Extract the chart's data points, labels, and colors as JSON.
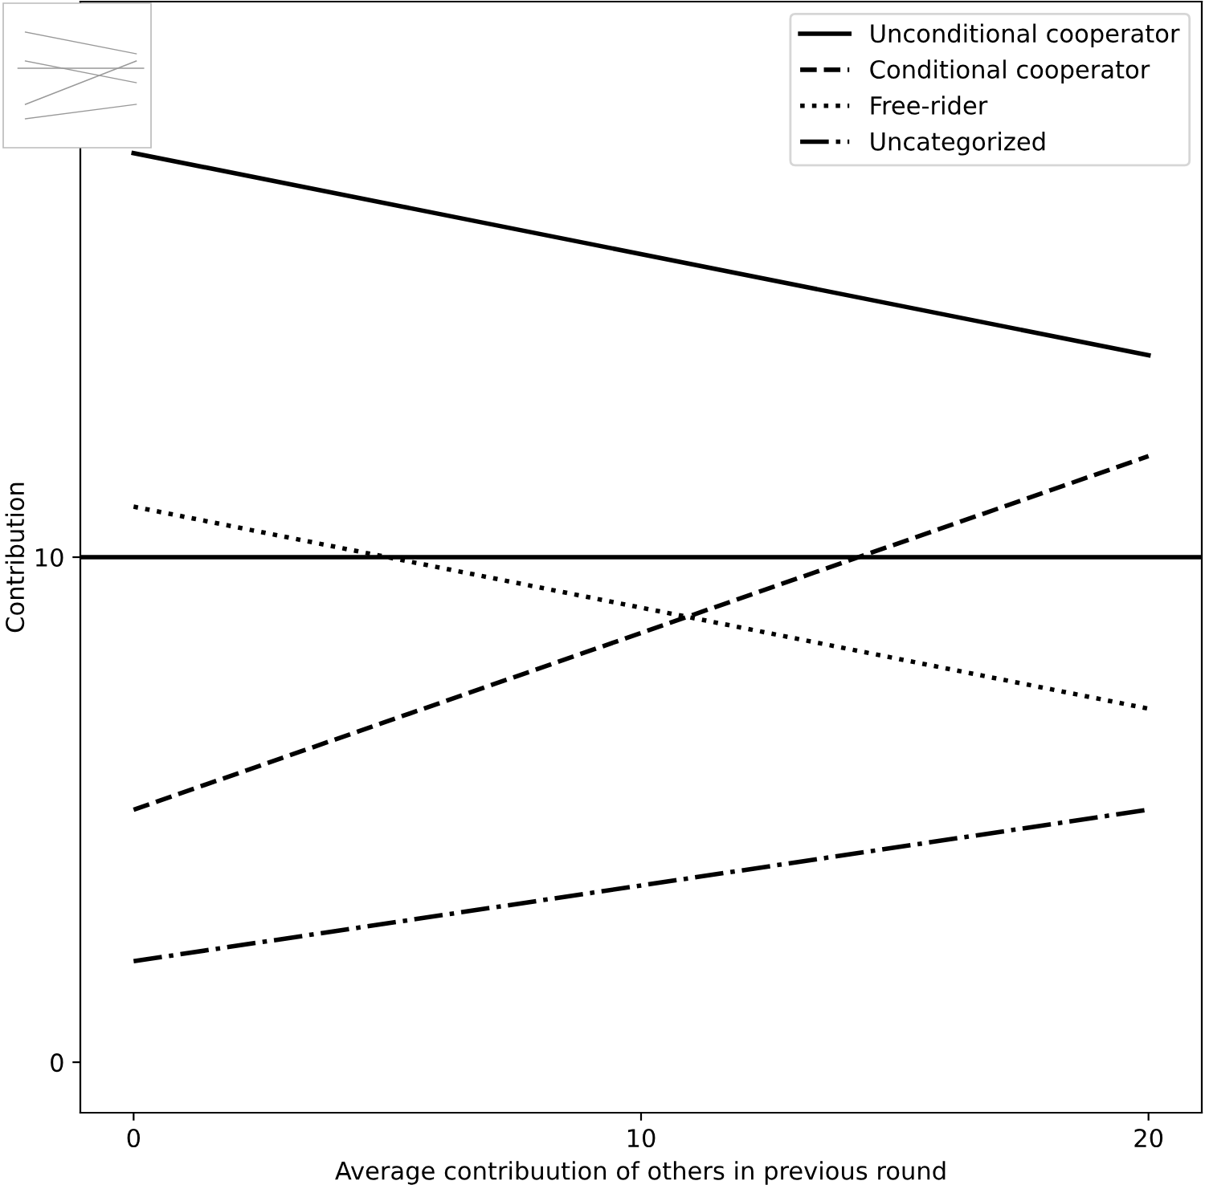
{
  "chart_data": {
    "type": "line",
    "xlabel": "Average contribuution of others in previous round",
    "ylabel": "Contribution",
    "x": [
      0,
      20
    ],
    "series": [
      {
        "name": "Unconditional cooperator",
        "color": "#000000",
        "line_style": "solid",
        "values": [
          18,
          14
        ]
      },
      {
        "name": "Conditional cooperator",
        "color": "#000000",
        "line_style": "dashed",
        "values": [
          5,
          12
        ]
      },
      {
        "name": "Free-rider",
        "color": "#000000",
        "line_style": "dotted",
        "values": [
          11,
          7
        ]
      },
      {
        "name": "Uncategorized",
        "color": "#000000",
        "line_style": "dashdot",
        "values": [
          2,
          5
        ]
      }
    ],
    "xlim": [
      -1.05,
      21.05
    ],
    "ylim": [
      -1,
      21
    ],
    "xticks": [
      0,
      10,
      20
    ],
    "yticks": [
      0,
      10
    ],
    "ref_lines": [
      {
        "axis": "y",
        "value": 10,
        "label": null,
        "color": "#000000",
        "line_style": "solid"
      }
    ],
    "grid": false,
    "legend": "top right",
    "marker": "none"
  }
}
